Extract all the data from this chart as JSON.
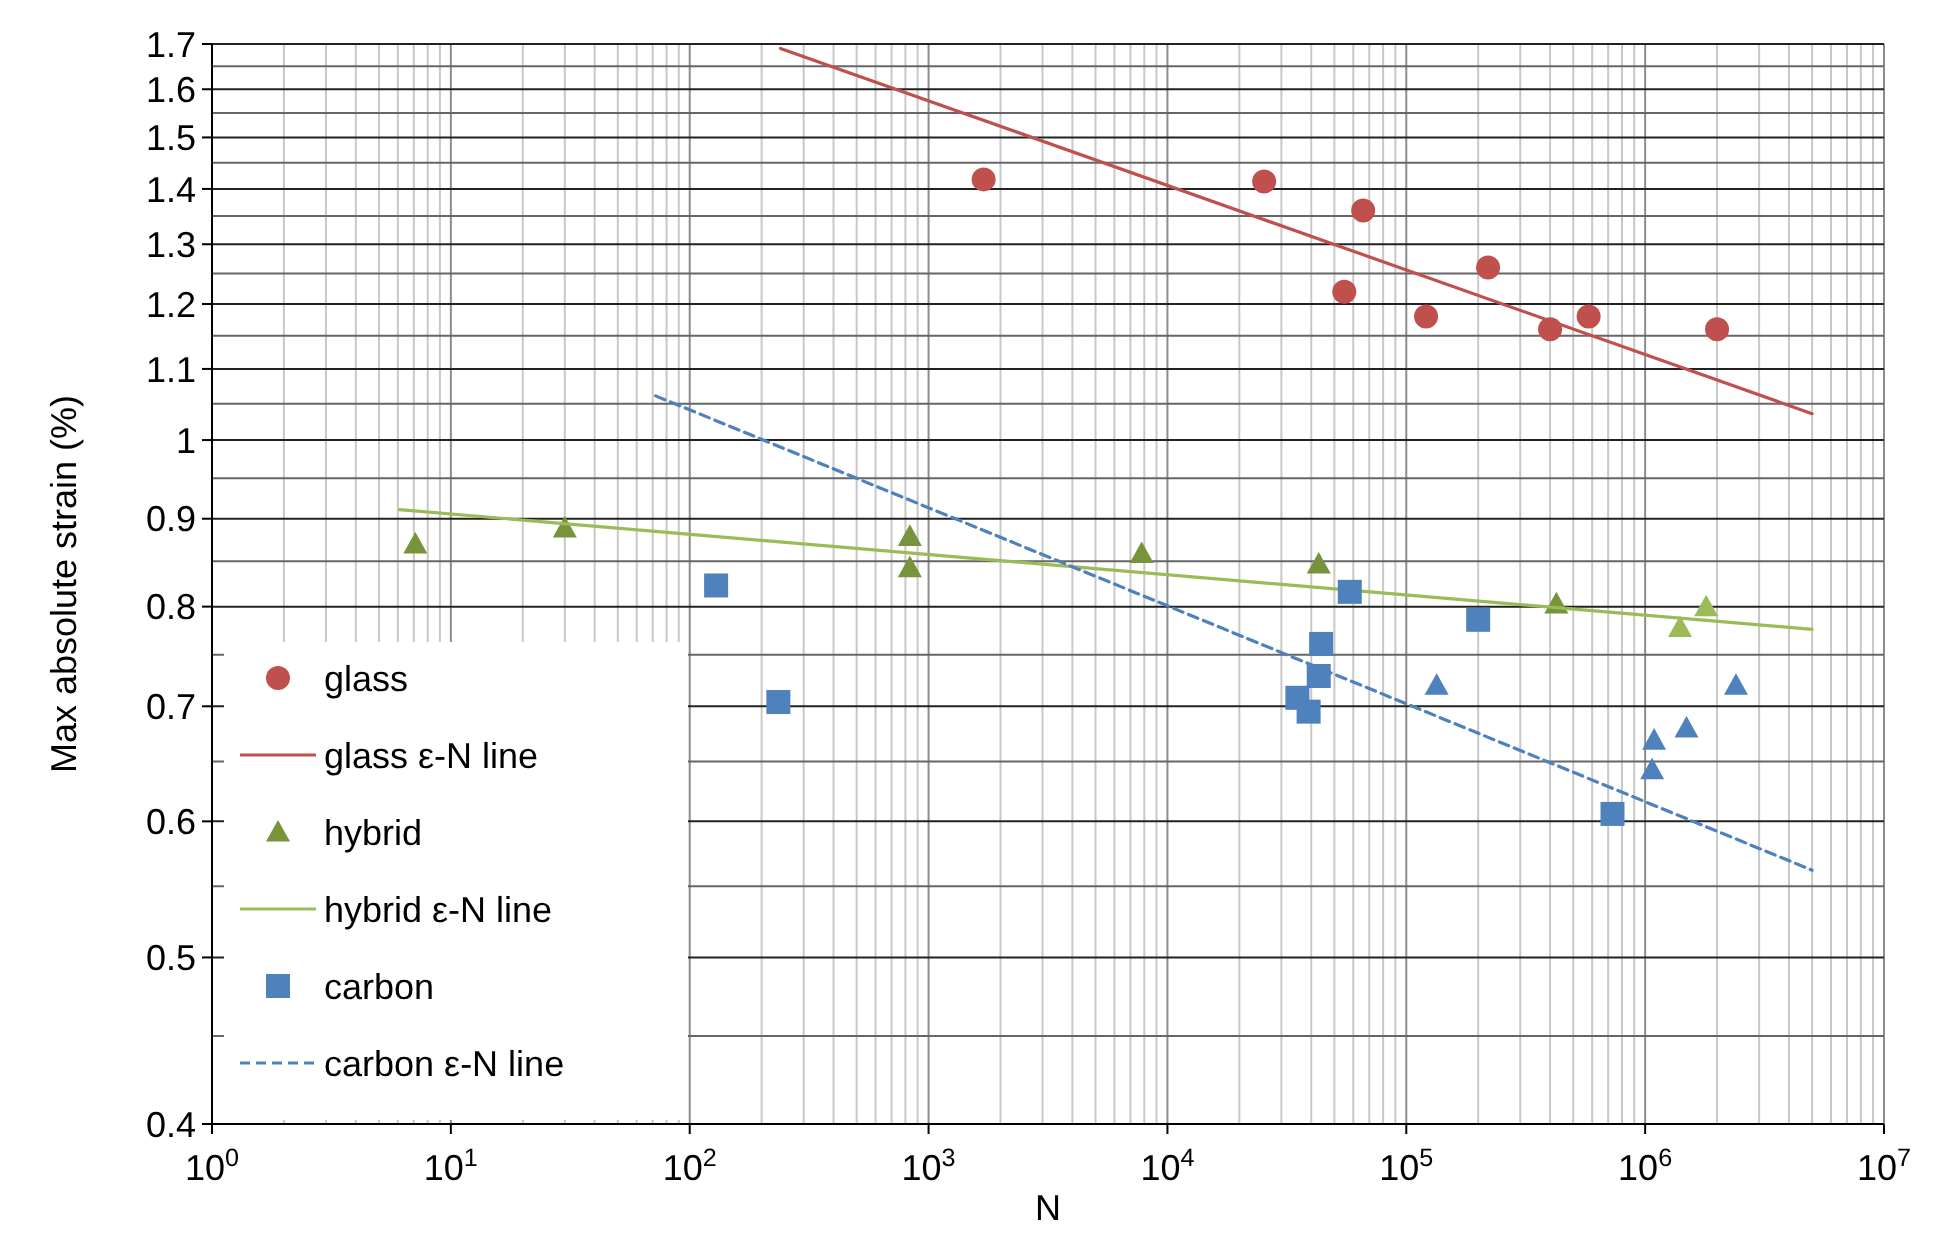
{
  "chart_data": {
    "type": "scatter",
    "xlabel": "N",
    "ylabel": "Max absolute strain (%)",
    "log": "xy",
    "grid": true,
    "legend": "bottom left",
    "xlim": [
      1,
      10000000
    ],
    "ylim": [
      0.4,
      1.7
    ],
    "xticks": [
      {
        "value": 1,
        "label": "10$^{0}$"
      },
      {
        "value": 2,
        "label": null
      },
      {
        "value": 3,
        "label": null
      },
      {
        "value": 4,
        "label": null
      },
      {
        "value": 5,
        "label": null
      },
      {
        "value": 6,
        "label": null
      },
      {
        "value": 7,
        "label": null
      },
      {
        "value": 8,
        "label": null
      },
      {
        "value": 9,
        "label": null
      },
      {
        "value": 10,
        "label": "10$^{1}$"
      },
      {
        "value": 20,
        "label": null
      },
      {
        "value": 30,
        "label": null
      },
      {
        "value": 40,
        "label": null
      },
      {
        "value": 50,
        "label": null
      },
      {
        "value": 60,
        "label": null
      },
      {
        "value": 70,
        "label": null
      },
      {
        "value": 80,
        "label": null
      },
      {
        "value": 90,
        "label": null
      },
      {
        "value": 100,
        "label": "10$^{2}$"
      },
      {
        "value": 200,
        "label": null
      },
      {
        "value": 300,
        "label": null
      },
      {
        "value": 400,
        "label": null
      },
      {
        "value": 500,
        "label": null
      },
      {
        "value": 600,
        "label": null
      },
      {
        "value": 700,
        "label": null
      },
      {
        "value": 800,
        "label": null
      },
      {
        "value": 900,
        "label": null
      },
      {
        "value": 1000,
        "label": "10$^{3}$"
      },
      {
        "value": 2000,
        "label": null
      },
      {
        "value": 3000,
        "label": null
      },
      {
        "value": 4000,
        "label": null
      },
      {
        "value": 5000,
        "label": null
      },
      {
        "value": 6000,
        "label": null
      },
      {
        "value": 7000,
        "label": null
      },
      {
        "value": 8000,
        "label": null
      },
      {
        "value": 9000,
        "label": null
      },
      {
        "value": 10000,
        "label": "10$^{4}$"
      },
      {
        "value": 20000,
        "label": null
      },
      {
        "value": 30000,
        "label": null
      },
      {
        "value": 40000,
        "label": null
      },
      {
        "value": 50000,
        "label": null
      },
      {
        "value": 60000,
        "label": null
      },
      {
        "value": 70000,
        "label": null
      },
      {
        "value": 80000,
        "label": null
      },
      {
        "value": 90000,
        "label": null
      },
      {
        "value": 100000,
        "label": "10$^{5}$"
      },
      {
        "value": 200000,
        "label": null
      },
      {
        "value": 300000,
        "label": null
      },
      {
        "value": 400000,
        "label": null
      },
      {
        "value": 500000,
        "label": null
      },
      {
        "value": 600000,
        "label": null
      },
      {
        "value": 700000,
        "label": null
      },
      {
        "value": 800000,
        "label": null
      },
      {
        "value": 900000,
        "label": null
      },
      {
        "value": 1000000,
        "label": "10$^{6}$"
      },
      {
        "value": 2000000,
        "label": null
      },
      {
        "value": 3000000,
        "label": null
      },
      {
        "value": 4000000,
        "label": null
      },
      {
        "value": 5000000,
        "label": null
      },
      {
        "value": 6000000,
        "label": null
      },
      {
        "value": 7000000,
        "label": null
      },
      {
        "value": 8000000,
        "label": null
      },
      {
        "value": 9000000,
        "label": null
      },
      {
        "value": 10000000,
        "label": "10$^{7}$"
      }
    ],
    "yticks": [
      {
        "value": 0.4,
        "label": "0.4"
      },
      {
        "value": 0.45,
        "label": null
      },
      {
        "value": 0.5,
        "label": "0.5"
      },
      {
        "value": 0.55,
        "label": null
      },
      {
        "value": 0.6,
        "label": "0.6"
      },
      {
        "value": 0.65,
        "label": null
      },
      {
        "value": 0.7,
        "label": "0.7"
      },
      {
        "value": 0.75,
        "label": null
      },
      {
        "value": 0.8,
        "label": "0.8"
      },
      {
        "value": 0.85,
        "label": null
      },
      {
        "value": 0.9,
        "label": "0.9"
      },
      {
        "value": 0.95,
        "label": null
      },
      {
        "value": 1,
        "label": "1"
      },
      {
        "value": 1.05,
        "label": null
      },
      {
        "value": 1.1,
        "label": "1.1"
      },
      {
        "value": 1.15,
        "label": null
      },
      {
        "value": 1.2,
        "label": "1.2"
      },
      {
        "value": 1.25,
        "label": null
      },
      {
        "value": 1.3,
        "label": "1.3"
      },
      {
        "value": 1.35,
        "label": null
      },
      {
        "value": 1.4,
        "label": "1.4"
      },
      {
        "value": 1.45,
        "label": null
      },
      {
        "value": 1.5,
        "label": "1.5"
      },
      {
        "value": 1.55,
        "label": null
      },
      {
        "value": 1.6,
        "label": "1.6"
      },
      {
        "value": 1.65,
        "label": null
      },
      {
        "value": 1.7,
        "label": "1.7"
      }
    ],
    "series": [
      {
        "name": "glass",
        "marker": "circle",
        "color": "#c0504d",
        "x": [
          1700,
          25400,
          66000,
          55000,
          121000,
          220000,
          400000,
          580000,
          2000000
        ],
        "values": [
          1.418,
          1.414,
          1.36,
          1.22,
          1.18,
          1.26,
          1.16,
          1.18,
          1.16
        ]
      },
      {
        "name": "glass ε-N line",
        "type": "line",
        "line_style": "solid",
        "color": "#c0504d",
        "x": [
          240,
          5000000
        ],
        "values": [
          1.69,
          1.036
        ]
      },
      {
        "name": "hybrid",
        "marker": "triangle",
        "color": "#77933c",
        "x": [
          7.1,
          30,
          835,
          835,
          7800,
          43000,
          425000
        ],
        "values": [
          0.87,
          0.889,
          0.879,
          0.843,
          0.859,
          0.847,
          0.803
        ]
      },
      {
        "name": "hybrid ε-N line",
        "type": "line",
        "line_style": "solid",
        "color": "#9bbb59",
        "x": [
          6.1,
          5000000
        ],
        "values": [
          0.911,
          0.776
        ]
      },
      {
        "name": "carbon",
        "marker": "square",
        "color": "#4f81bd",
        "x": [
          129,
          235,
          58000,
          200000,
          44000,
          43000,
          35000,
          39000,
          730000
        ],
        "values": [
          0.823,
          0.704,
          0.816,
          0.786,
          0.761,
          0.729,
          0.708,
          0.695,
          0.606
        ]
      },
      {
        "name": "carbon ε-N line",
        "type": "line",
        "line_style": "dashed",
        "color": "#4f81bd",
        "x": [
          72,
          5000000
        ],
        "values": [
          1.061,
          0.562
        ]
      },
      {
        "marker": "triangle",
        "color": "#9bbb59",
        "x": [
          1800000,
          1400000
        ],
        "values": [
          0.8,
          0.778
        ]
      },
      {
        "marker": "triangle",
        "color": "#4f81bd",
        "x": [
          134000,
          1090000,
          1490000,
          1070000,
          2400000
        ],
        "values": [
          0.72,
          0.669,
          0.68,
          0.643,
          0.72
        ]
      }
    ]
  }
}
